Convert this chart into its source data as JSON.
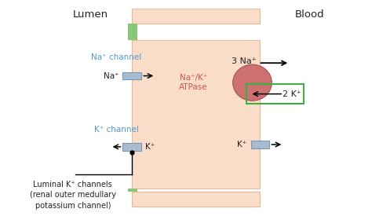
{
  "bg_color": "#ffffff",
  "cell_color": "#f9ddc8",
  "border_color": "#e8b898",
  "green_stripe_color": "#88c878",
  "channel_color": "#a8bcd0",
  "channel_border": "#7898b0",
  "atpase_color": "#cc7070",
  "atpase_border": "#aa5050",
  "green_box_color": "#44aa44",
  "blue_text_color": "#5599cc",
  "red_text_color": "#cc5555",
  "black_text_color": "#222222",
  "lumen_label": "Lumen",
  "blood_label": "Blood",
  "na_channel_label": "Na⁺ channel",
  "k_channel_label": "K⁺ channel",
  "na_label": "Na⁺",
  "k_label": "K⁺",
  "three_na_label": "3 Na⁺",
  "two_k_label": "2 K⁺",
  "atpase_label": "Na⁺/K⁺\nATPase",
  "luminal_k_label": "Luminal K⁺ channels\n(renal outer medullary\npotassium channel)"
}
